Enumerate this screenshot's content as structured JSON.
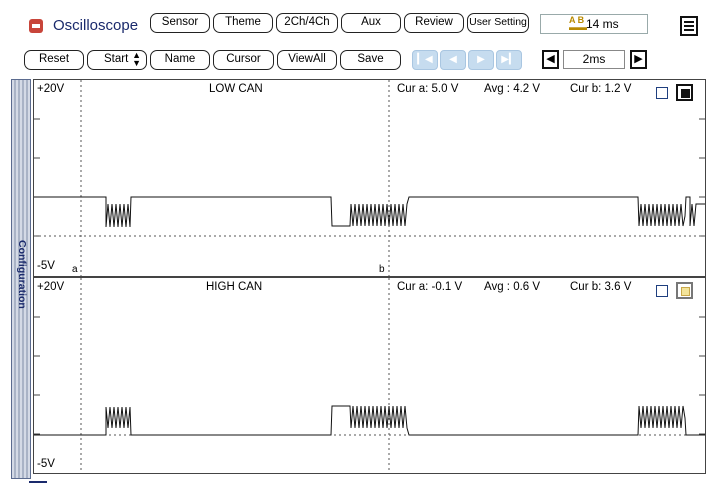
{
  "app": {
    "title": "Oscilloscope",
    "time_readout": "14 ms",
    "record_icon": "record-icon",
    "menu_icon": "menu-icon"
  },
  "top_buttons": {
    "sensor": "Sensor",
    "theme": "Theme",
    "channels": "2Ch/4Ch",
    "aux": "Aux",
    "review": "Review",
    "user_setting": "User Setting"
  },
  "toolbar": {
    "reset": "Reset",
    "start": "Start",
    "start_icon": "updown-arrows-icon",
    "name": "Name",
    "cursor": "Cursor",
    "viewall": "ViewAll",
    "save": "Save",
    "nav_icons": [
      "first-icon",
      "prev-icon",
      "next-icon",
      "last-icon"
    ],
    "timebase": "2ms"
  },
  "sidebar": {
    "label": "Configuration"
  },
  "channels": [
    {
      "name": "LOW CAN",
      "ymax": "+20V",
      "ymin": "-5V",
      "cursor_a_marker": "a",
      "cursor_b_marker": "b",
      "cur_a": "Cur a: 5.0 V",
      "avg": "Avg  : 4.2 V",
      "cur_b": "Cur b: 1.2 V",
      "color": "#111111"
    },
    {
      "name": "HIGH CAN",
      "ymax": "+20V",
      "ymin": "-5V",
      "cur_a": "Cur a: -0.1 V",
      "avg": "Avg  : 0.6 V",
      "cur_b": "Cur b: 3.6 V",
      "color": "#f3e49a"
    }
  ],
  "colors": {
    "accent": "#c8453a",
    "nav_disabled": "#c6dcef",
    "sidebar": "#a9b3c6",
    "trace": "#111111"
  }
}
